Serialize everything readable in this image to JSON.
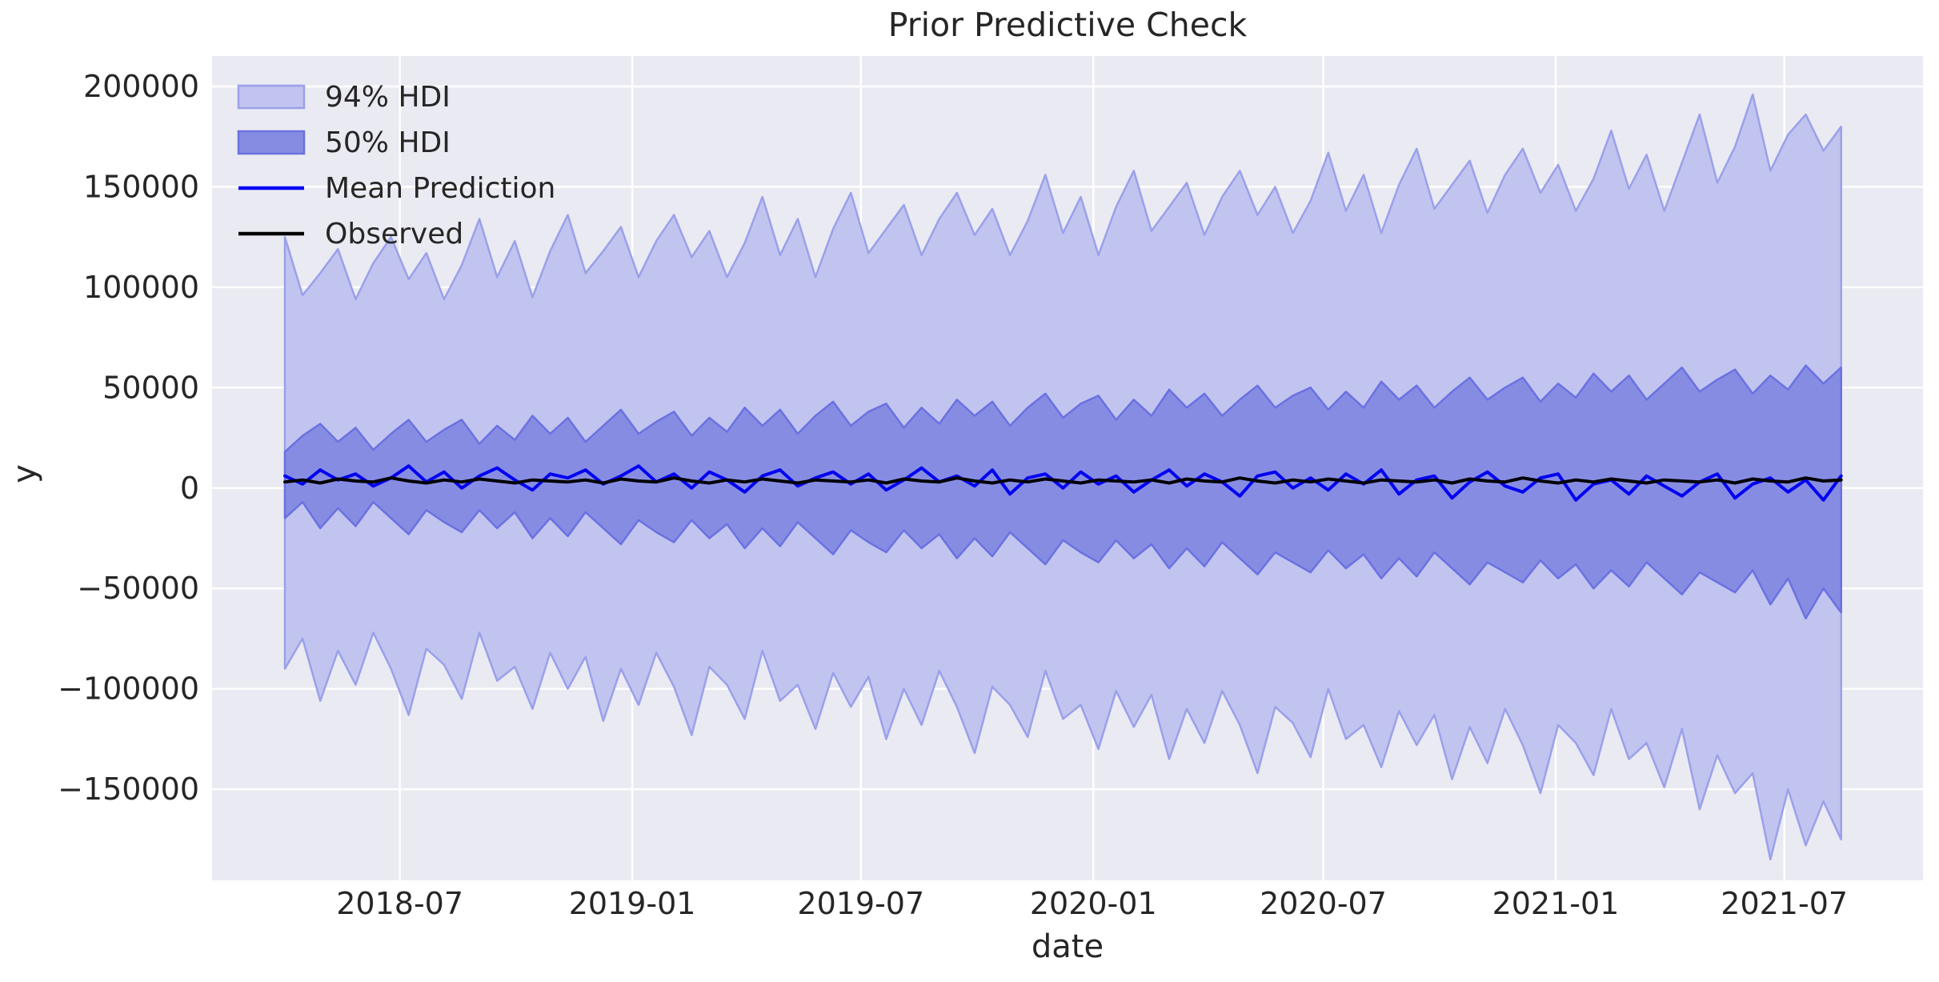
{
  "figure": {
    "title": "Prior Predictive Check",
    "x_axis_label": "date",
    "y_axis_label": "y"
  },
  "legend": {
    "position": "upper left",
    "items": [
      {
        "label": "94% HDI",
        "kind": "patch",
        "swatch": "hdi94-swatch"
      },
      {
        "label": "50% HDI",
        "kind": "patch",
        "swatch": "hdi50-swatch"
      },
      {
        "label": "Mean Prediction",
        "kind": "line",
        "swatch": "mean-line-swatch"
      },
      {
        "label": "Observed",
        "kind": "line",
        "swatch": "observed-line-swatch"
      }
    ]
  },
  "colors": {
    "figure_bg": "#ffffff",
    "axes_bg": "#eaeaf2",
    "grid": "#ffffff",
    "text": "#262626",
    "band_fills": [
      "#c1c4ee",
      "#878ce3"
    ],
    "band_edges": [
      "#9aa0ea",
      "#6a71e0"
    ],
    "line_colors": [
      "#0101f0",
      "#000000"
    ]
  },
  "chart_data": {
    "type": "area",
    "subtype": "hdi-bands-with-lines",
    "title": "Prior Predictive Check",
    "xlabel": "date",
    "ylabel": "y",
    "grid": true,
    "legend_position": "upper left",
    "x_start_date": "2018-04-01",
    "x_step_days": 14,
    "n_points": 89,
    "ylim": [
      -195400,
      215150
    ],
    "y_ticks": [
      {
        "label": "200000",
        "value": 200000
      },
      {
        "label": "150000",
        "value": 150000
      },
      {
        "label": "100000",
        "value": 100000
      },
      {
        "label": "50000",
        "value": 50000
      },
      {
        "label": "0",
        "value": 0
      },
      {
        "label": "−50000",
        "value": -50000
      },
      {
        "label": "−100000",
        "value": -100000
      },
      {
        "label": "−150000",
        "value": -150000
      }
    ],
    "x_ticks": [
      {
        "label": "2018-07",
        "date": "2018-07-01"
      },
      {
        "label": "2019-01",
        "date": "2019-01-01"
      },
      {
        "label": "2019-07",
        "date": "2019-07-01"
      },
      {
        "label": "2020-01",
        "date": "2020-01-01"
      },
      {
        "label": "2020-07",
        "date": "2020-07-01"
      },
      {
        "label": "2021-01",
        "date": "2021-01-01"
      },
      {
        "label": "2021-07",
        "date": "2021-07-01"
      }
    ],
    "series": [
      {
        "name": "94% HDI",
        "kind": "band",
        "upper": [
          125000,
          96000,
          107000,
          119000,
          94000,
          112000,
          125000,
          104000,
          117000,
          94000,
          111000,
          134000,
          105000,
          123000,
          95000,
          118000,
          136000,
          107000,
          118000,
          130000,
          105000,
          123000,
          136000,
          115000,
          128000,
          105000,
          122000,
          145000,
          116000,
          134000,
          105000,
          129000,
          147000,
          117000,
          129000,
          141000,
          116000,
          134000,
          147000,
          126000,
          139000,
          116000,
          133000,
          156000,
          127000,
          145000,
          116000,
          140000,
          158000,
          128000,
          140000,
          152000,
          126000,
          145000,
          158000,
          136000,
          150000,
          127000,
          143000,
          167000,
          138000,
          156000,
          127000,
          151000,
          169000,
          139000,
          151000,
          163000,
          137000,
          156000,
          169000,
          147000,
          161000,
          138000,
          154000,
          178000,
          149000,
          166000,
          138000,
          162000,
          186000,
          152000,
          170000,
          196000,
          158000,
          176000,
          186000,
          168000,
          180000
        ],
        "lower": [
          -90000,
          -75000,
          -106000,
          -81000,
          -98000,
          -72000,
          -90000,
          -113000,
          -80000,
          -88000,
          -105000,
          -72000,
          -96000,
          -89000,
          -110000,
          -82000,
          -100000,
          -84000,
          -116000,
          -90000,
          -108000,
          -82000,
          -99000,
          -123000,
          -89000,
          -98000,
          -115000,
          -81000,
          -106000,
          -98000,
          -120000,
          -92000,
          -109000,
          -94000,
          -125000,
          -100000,
          -118000,
          -91000,
          -109000,
          -132000,
          -99000,
          -108000,
          -124000,
          -91000,
          -115000,
          -108000,
          -130000,
          -101000,
          -119000,
          -103000,
          -135000,
          -110000,
          -127000,
          -101000,
          -118000,
          -142000,
          -109000,
          -117000,
          -134000,
          -100000,
          -125000,
          -118000,
          -139000,
          -111000,
          -128000,
          -113000,
          -145000,
          -119000,
          -137000,
          -110000,
          -128000,
          -152000,
          -118000,
          -127000,
          -143000,
          -110000,
          -135000,
          -127000,
          -149000,
          -120000,
          -160000,
          -133000,
          -152000,
          -142000,
          -185000,
          -150000,
          -178000,
          -156000,
          -175000
        ]
      },
      {
        "name": "50% HDI",
        "kind": "band",
        "upper": [
          18000,
          26000,
          32000,
          23000,
          30000,
          19000,
          27000,
          34000,
          23000,
          29000,
          34000,
          22000,
          31000,
          24000,
          36000,
          27000,
          35000,
          23000,
          31000,
          39000,
          27000,
          33000,
          38000,
          26000,
          35000,
          28000,
          40000,
          31000,
          39000,
          27000,
          36000,
          43000,
          31000,
          38000,
          42000,
          30000,
          40000,
          32000,
          44000,
          36000,
          43000,
          31000,
          40000,
          47000,
          35000,
          42000,
          46000,
          34000,
          44000,
          36000,
          49000,
          40000,
          47000,
          36000,
          44000,
          51000,
          40000,
          46000,
          50000,
          39000,
          48000,
          40000,
          53000,
          44000,
          51000,
          40000,
          48000,
          55000,
          44000,
          50000,
          55000,
          43000,
          52000,
          45000,
          57000,
          48000,
          56000,
          44000,
          52000,
          60000,
          48000,
          54000,
          59000,
          47000,
          56000,
          49000,
          61000,
          52000,
          60000
        ],
        "lower": [
          -15000,
          -7000,
          -20000,
          -10000,
          -19000,
          -7000,
          -15000,
          -23000,
          -11000,
          -17000,
          -22000,
          -11000,
          -20000,
          -12000,
          -25000,
          -15000,
          -24000,
          -12000,
          -20000,
          -28000,
          -16000,
          -22000,
          -27000,
          -16000,
          -25000,
          -18000,
          -30000,
          -20000,
          -29000,
          -17000,
          -25000,
          -33000,
          -21000,
          -27000,
          -32000,
          -21000,
          -30000,
          -23000,
          -35000,
          -25000,
          -34000,
          -22000,
          -30000,
          -38000,
          -26000,
          -32000,
          -37000,
          -26000,
          -35000,
          -28000,
          -40000,
          -30000,
          -39000,
          -27000,
          -35000,
          -43000,
          -32000,
          -37000,
          -42000,
          -31000,
          -40000,
          -33000,
          -45000,
          -35000,
          -44000,
          -32000,
          -40000,
          -48000,
          -37000,
          -42000,
          -47000,
          -36000,
          -45000,
          -38000,
          -50000,
          -41000,
          -49000,
          -37000,
          -45000,
          -53000,
          -42000,
          -47000,
          -52000,
          -41000,
          -58000,
          -45000,
          -65000,
          -50000,
          -62000
        ]
      },
      {
        "name": "Mean Prediction",
        "kind": "line",
        "values": [
          6000,
          2000,
          9000,
          4000,
          7000,
          1000,
          5000,
          11000,
          3000,
          8000,
          0,
          6000,
          10000,
          4000,
          -1000,
          7000,
          5000,
          9000,
          2000,
          6000,
          11000,
          3000,
          7000,
          0,
          8000,
          4000,
          -2000,
          6000,
          9000,
          1000,
          5000,
          8000,
          2000,
          7000,
          -1000,
          4000,
          10000,
          3000,
          6000,
          1000,
          9000,
          -3000,
          5000,
          7000,
          0,
          8000,
          2000,
          6000,
          -2000,
          4000,
          9000,
          1000,
          7000,
          3000,
          -4000,
          6000,
          8000,
          0,
          5000,
          -1000,
          7000,
          2000,
          9000,
          -3000,
          4000,
          6000,
          -5000,
          3000,
          8000,
          1000,
          -2000,
          5000,
          7000,
          -6000,
          2000,
          4000,
          -3000,
          6000,
          1000,
          -4000,
          3000,
          7000,
          -5000,
          2000,
          5000,
          -2000,
          4000,
          -6000,
          6000
        ]
      },
      {
        "name": "Observed",
        "kind": "line",
        "values": [
          3000,
          4000,
          2500,
          4500,
          3500,
          3000,
          5000,
          3500,
          2500,
          4000,
          3000,
          4500,
          3500,
          2500,
          4000,
          3500,
          3000,
          4000,
          2500,
          4500,
          3500,
          3000,
          5000,
          3500,
          2500,
          4000,
          3000,
          4500,
          3500,
          2500,
          4000,
          3500,
          3000,
          4000,
          2500,
          4500,
          3500,
          3000,
          5000,
          3500,
          2500,
          4000,
          3000,
          4500,
          3500,
          2500,
          4000,
          3500,
          3000,
          4000,
          2500,
          4500,
          3500,
          3000,
          5000,
          3500,
          2500,
          4000,
          3000,
          4500,
          3500,
          2500,
          4000,
          3500,
          3000,
          4000,
          2500,
          4500,
          3500,
          3000,
          5000,
          3500,
          2500,
          4000,
          3000,
          4500,
          3500,
          2500,
          4000,
          3500,
          3000,
          4000,
          2500,
          4500,
          3500,
          3000,
          5000,
          3500,
          4000
        ]
      }
    ]
  }
}
